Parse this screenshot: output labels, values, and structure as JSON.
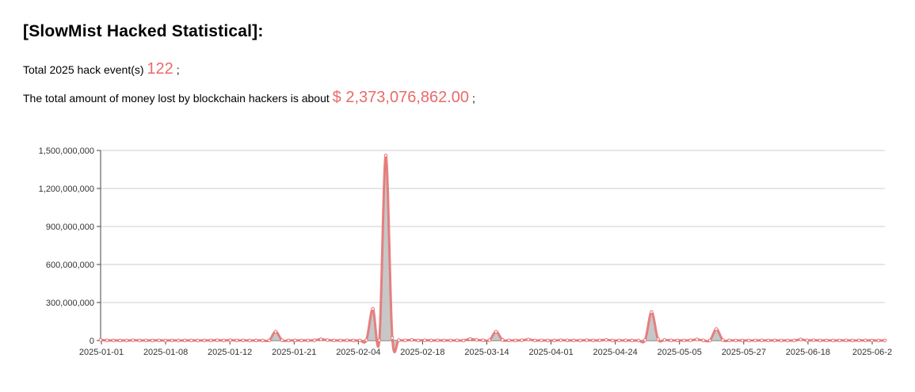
{
  "header": {
    "title": "[SlowMist Hacked Statistical]:",
    "events_prefix": "Total 2025 hack event(s)",
    "events_count": "122",
    "events_suffix": ";",
    "money_prefix": "The total amount of money lost by blockchain hackers is about",
    "money_total": "$ 2,373,076,862.00",
    "money_suffix": ";"
  },
  "colors": {
    "accent": "#ea6a6a",
    "line": "#e57373",
    "area": "#bdbdbd",
    "grid": "#cccccc",
    "axis": "#444444"
  },
  "chart_data": {
    "type": "area",
    "title": "",
    "xlabel": "",
    "ylabel": "",
    "ylim": [
      0,
      1500000000
    ],
    "yticks": [
      0,
      300000000,
      600000000,
      900000000,
      1200000000,
      1500000000
    ],
    "ytick_labels": [
      "0",
      "300,000,000",
      "600,000,000",
      "900,000,000",
      "1,200,000,000",
      "1,500,000,000"
    ],
    "xtick_labels": [
      "2025-01-01",
      "2025-01-08",
      "2025-01-12",
      "2025-01-21",
      "2025-02-04",
      "2025-02-18",
      "2025-03-14",
      "2025-04-01",
      "2025-04-24",
      "2025-05-05",
      "2025-05-27",
      "2025-06-18",
      "2025-06-2"
    ],
    "grid": true,
    "legend": "none",
    "series": [
      {
        "values": [
          5000000,
          1000000,
          500000,
          800000,
          300000,
          2000000,
          500000,
          1000000,
          600000,
          1500000,
          400000,
          800000,
          300000,
          500000,
          1000000,
          400000,
          600000,
          500000,
          2000000,
          800000,
          3000000,
          500000,
          700000,
          300000,
          500000,
          400000,
          600000,
          70000000,
          2000000,
          800000,
          1000000,
          500000,
          600000,
          2000000,
          10000000,
          3000000,
          800000,
          500000,
          1000000,
          400000,
          600000,
          3000000,
          250000000,
          2000000,
          1460000000,
          20000000,
          3000000,
          1000000,
          5000000,
          500000,
          2000000,
          800000,
          1500000,
          500000,
          700000,
          1000000,
          400000,
          12000000,
          5000000,
          2000000,
          3000000,
          70000000,
          5000000,
          1000000,
          800000,
          2000000,
          8000000,
          500000,
          1000000,
          400000,
          600000,
          3000000,
          1000000,
          500000,
          800000,
          2000000,
          500000,
          1500000,
          5000000,
          700000,
          500000,
          1000000,
          400000,
          600000,
          3000000,
          225000000,
          10000000,
          5000000,
          1000000,
          800000,
          500000,
          2000000,
          8000000,
          1000000,
          500000,
          90000000,
          3000000,
          1000000,
          500000,
          800000,
          400000,
          600000,
          1000000,
          500000,
          700000,
          300000,
          500000,
          400000,
          8000000,
          1000000,
          2000000,
          500000,
          800000,
          300000,
          500000,
          1000000,
          400000,
          600000,
          500000,
          800000,
          300000,
          500000
        ]
      }
    ]
  }
}
